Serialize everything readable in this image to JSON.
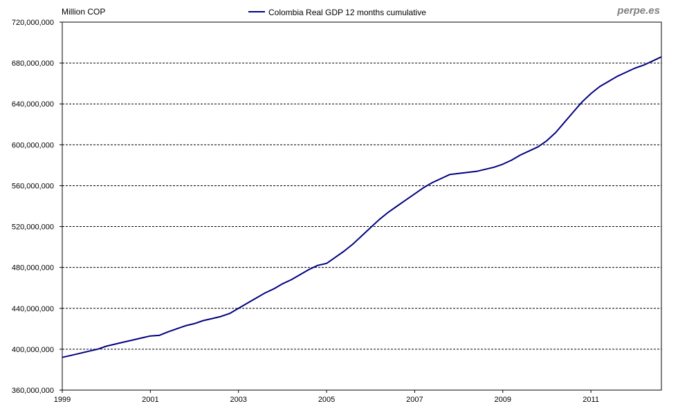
{
  "chart_data": {
    "type": "line",
    "title": "",
    "ylabel": "Million COP",
    "xlabel": "",
    "watermark": "perpe.es",
    "legend_position": "top-center",
    "grid": "horizontal-dashed",
    "ylim": [
      360000000,
      720000000
    ],
    "xlim": [
      1999,
      2012.6
    ],
    "y_ticks": [
      {
        "value": 360000000,
        "label": "360,000,000"
      },
      {
        "value": 400000000,
        "label": "400,000,000"
      },
      {
        "value": 440000000,
        "label": "440,000,000"
      },
      {
        "value": 480000000,
        "label": "480,000,000"
      },
      {
        "value": 520000000,
        "label": "520,000,000"
      },
      {
        "value": 560000000,
        "label": "560,000,000"
      },
      {
        "value": 600000000,
        "label": "600,000,000"
      },
      {
        "value": 640000000,
        "label": "640,000,000"
      },
      {
        "value": 680000000,
        "label": "680,000,000"
      },
      {
        "value": 720000000,
        "label": "720,000,000"
      }
    ],
    "x_ticks": [
      {
        "value": 1999,
        "label": "1999"
      },
      {
        "value": 2001,
        "label": "2001"
      },
      {
        "value": 2003,
        "label": "2003"
      },
      {
        "value": 2005,
        "label": "2005"
      },
      {
        "value": 2007,
        "label": "2007"
      },
      {
        "value": 2009,
        "label": "2009"
      },
      {
        "value": 2011,
        "label": "2011"
      }
    ],
    "series": [
      {
        "name": "Colombia Real GDP 12 months cumulative",
        "color": "#000080",
        "x": [
          1999.0,
          1999.2,
          1999.4,
          1999.6,
          1999.8,
          2000.0,
          2000.2,
          2000.4,
          2000.6,
          2000.8,
          2001.0,
          2001.2,
          2001.4,
          2001.6,
          2001.8,
          2002.0,
          2002.2,
          2002.4,
          2002.6,
          2002.8,
          2003.0,
          2003.2,
          2003.4,
          2003.6,
          2003.8,
          2004.0,
          2004.2,
          2004.4,
          2004.6,
          2004.8,
          2005.0,
          2005.2,
          2005.4,
          2005.6,
          2005.8,
          2006.0,
          2006.2,
          2006.4,
          2006.6,
          2006.8,
          2007.0,
          2007.2,
          2007.4,
          2007.6,
          2007.8,
          2008.0,
          2008.2,
          2008.4,
          2008.6,
          2008.8,
          2009.0,
          2009.2,
          2009.4,
          2009.6,
          2009.8,
          2010.0,
          2010.2,
          2010.4,
          2010.6,
          2010.8,
          2011.0,
          2011.2,
          2011.4,
          2011.6,
          2011.8,
          2012.0,
          2012.2,
          2012.4,
          2012.6
        ],
        "values": [
          392000000,
          394000000,
          396000000,
          398000000,
          400000000,
          403000000,
          405000000,
          407000000,
          409000000,
          411000000,
          413000000,
          413500000,
          417000000,
          420000000,
          423000000,
          425000000,
          428000000,
          430000000,
          432000000,
          435000000,
          440000000,
          445000000,
          450000000,
          455000000,
          459000000,
          464000000,
          468000000,
          473000000,
          478000000,
          482000000,
          484000000,
          490000000,
          496000000,
          503000000,
          511000000,
          519000000,
          527000000,
          534000000,
          540000000,
          546000000,
          552000000,
          558000000,
          563000000,
          567000000,
          571000000,
          572000000,
          573000000,
          574000000,
          576000000,
          578000000,
          581000000,
          585000000,
          590000000,
          594000000,
          598000000,
          604000000,
          612000000,
          622000000,
          632000000,
          642000000,
          650000000,
          657000000,
          662000000,
          667000000,
          671000000,
          675000000,
          678000000,
          682000000,
          686000000
        ]
      }
    ]
  }
}
